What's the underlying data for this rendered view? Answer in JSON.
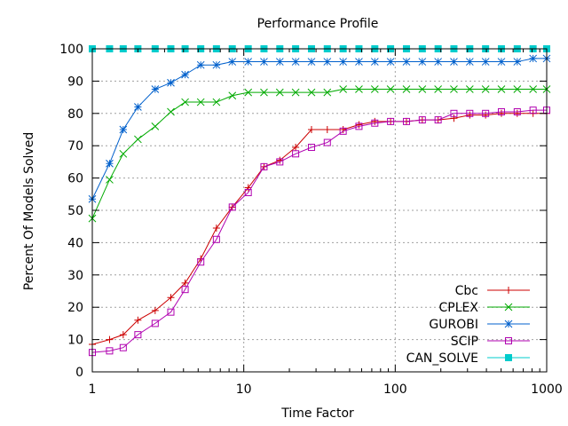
{
  "chart_data": {
    "type": "line",
    "title": "Performance Profile",
    "xlabel": "Time Factor",
    "ylabel": "Percent Of Models Solved",
    "xscale": "log",
    "xlim": [
      1,
      1000
    ],
    "ylim": [
      0,
      100
    ],
    "xticks": [
      1,
      10,
      100,
      1000
    ],
    "yticks": [
      0,
      10,
      20,
      30,
      40,
      50,
      60,
      70,
      80,
      90,
      100
    ],
    "grid": true,
    "legend": "bottom-right",
    "series": [
      {
        "name": "Cbc",
        "color": "#cc0000",
        "marker": "plus",
        "x": [
          1,
          1.3,
          1.6,
          2.0,
          2.6,
          3.3,
          4.1,
          5.2,
          6.6,
          8.4,
          10.7,
          13.6,
          17.3,
          22,
          28,
          35.6,
          45.3,
          57.6,
          73.3,
          93.2,
          118.6,
          150.9,
          191.9,
          244,
          310.5,
          395,
          502.4,
          639.2,
          813,
          1000
        ],
        "y": [
          8.5,
          10,
          11.5,
          16,
          19,
          23,
          27.5,
          35,
          44.5,
          51,
          57,
          63.5,
          65.5,
          69.5,
          75,
          75,
          75,
          76.5,
          77.5,
          77.5,
          77.5,
          78,
          78,
          78.5,
          79.5,
          79.5,
          80,
          80,
          80,
          80
        ]
      },
      {
        "name": "CPLEX",
        "color": "#00aa00",
        "marker": "cross",
        "x": [
          1,
          1.3,
          1.6,
          2.0,
          2.6,
          3.3,
          4.1,
          5.2,
          6.6,
          8.4,
          10.7,
          13.6,
          17.3,
          22,
          28,
          35.6,
          45.3,
          57.6,
          73.3,
          93.2,
          118.6,
          150.9,
          191.9,
          244,
          310.5,
          395,
          502.4,
          639.2,
          813,
          1000
        ],
        "y": [
          47.5,
          59.5,
          67.5,
          72,
          76,
          80.5,
          83.5,
          83.5,
          83.5,
          85.5,
          86.5,
          86.5,
          86.5,
          86.5,
          86.5,
          86.5,
          87.5,
          87.5,
          87.5,
          87.5,
          87.5,
          87.5,
          87.5,
          87.5,
          87.5,
          87.5,
          87.5,
          87.5,
          87.5,
          87.5
        ]
      },
      {
        "name": "GUROBI",
        "color": "#0060cc",
        "marker": "star",
        "x": [
          1,
          1.3,
          1.6,
          2.0,
          2.6,
          3.3,
          4.1,
          5.2,
          6.6,
          8.4,
          10.7,
          13.6,
          17.3,
          22,
          28,
          35.6,
          45.3,
          57.6,
          73.3,
          93.2,
          118.6,
          150.9,
          191.9,
          244,
          310.5,
          395,
          502.4,
          639.2,
          813,
          1000
        ],
        "y": [
          53.5,
          64.5,
          75,
          82,
          87.5,
          89.5,
          92,
          95,
          95,
          96,
          96,
          96,
          96,
          96,
          96,
          96,
          96,
          96,
          96,
          96,
          96,
          96,
          96,
          96,
          96,
          96,
          96,
          96,
          97,
          97
        ]
      },
      {
        "name": "SCIP",
        "color": "#b000b0",
        "marker": "square-open",
        "x": [
          1,
          1.3,
          1.6,
          2.0,
          2.6,
          3.3,
          4.1,
          5.2,
          6.6,
          8.4,
          10.7,
          13.6,
          17.3,
          22,
          28,
          35.6,
          45.3,
          57.6,
          73.3,
          93.2,
          118.6,
          150.9,
          191.9,
          244,
          310.5,
          395,
          502.4,
          639.2,
          813,
          1000
        ],
        "y": [
          6,
          6.5,
          7.5,
          11.5,
          15,
          18.5,
          25.5,
          34,
          41,
          51,
          55.5,
          63.5,
          65,
          67.5,
          69.5,
          71,
          74.5,
          76,
          77,
          77.5,
          77.5,
          78,
          78,
          80,
          80,
          80,
          80.5,
          80.5,
          81,
          81
        ]
      },
      {
        "name": "CAN_SOLVE",
        "color": "#00cccc",
        "marker": "square-filled",
        "x": [
          1,
          1.3,
          1.6,
          2.0,
          2.6,
          3.3,
          4.1,
          5.2,
          6.6,
          8.4,
          10.7,
          13.6,
          17.3,
          22,
          28,
          35.6,
          45.3,
          57.6,
          73.3,
          93.2,
          118.6,
          150.9,
          191.9,
          244,
          310.5,
          395,
          502.4,
          639.2,
          813,
          1000
        ],
        "y": [
          100,
          100,
          100,
          100,
          100,
          100,
          100,
          100,
          100,
          100,
          100,
          100,
          100,
          100,
          100,
          100,
          100,
          100,
          100,
          100,
          100,
          100,
          100,
          100,
          100,
          100,
          100,
          100,
          100,
          100
        ]
      }
    ]
  }
}
